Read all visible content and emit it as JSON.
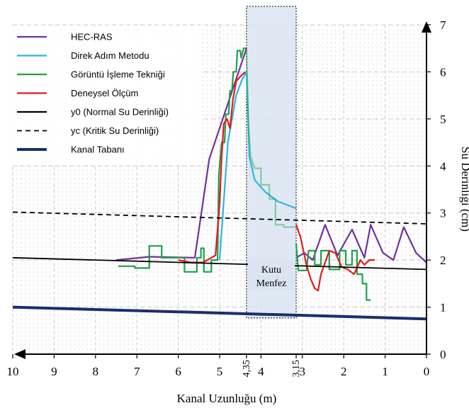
{
  "chart_data": {
    "type": "line",
    "xlabel": "Kanal Uzunluğu (m)",
    "ylabel": "Su Derinliği (cm)",
    "xlim": [
      10,
      0
    ],
    "ylim": [
      0,
      7
    ],
    "x_ticks": [
      "10",
      "9",
      "8",
      "7",
      "6",
      "5",
      "4,35",
      "4",
      "3,15",
      "3",
      "2",
      "1",
      "0"
    ],
    "x_tick_values": [
      10,
      9,
      8,
      7,
      6,
      5,
      4.35,
      4,
      3.15,
      3,
      2,
      1,
      0
    ],
    "y_ticks": [
      "0",
      "1",
      "2",
      "3",
      "4",
      "5",
      "6",
      "7"
    ],
    "y_tick_values": [
      0,
      1,
      2,
      3,
      4,
      5,
      6,
      7
    ],
    "grid": true,
    "legend_position": "top-left",
    "annotation": {
      "label_line1": "Kutu",
      "label_line2": "Menfez",
      "x_from": 4.35,
      "x_to": 3.15,
      "fill": "#dbe5f1"
    },
    "series": [
      {
        "name": "HEC-RAS",
        "color": "#7030a0",
        "style": "solid",
        "points": [
          [
            7.5,
            2.0
          ],
          [
            6.7,
            2.07
          ],
          [
            5.6,
            2.05
          ],
          [
            5.25,
            4.15
          ],
          [
            4.35,
            6.5
          ]
        ],
        "points2": [
          [
            3.15,
            2.05
          ],
          [
            2.95,
            2.15
          ],
          [
            2.75,
            2.0
          ],
          [
            2.45,
            2.75
          ],
          [
            2.15,
            2.1
          ],
          [
            1.8,
            2.65
          ],
          [
            1.5,
            2.05
          ],
          [
            1.35,
            2.75
          ],
          [
            1.05,
            2.15
          ],
          [
            0.8,
            2.0
          ],
          [
            0.55,
            2.7
          ],
          [
            0.25,
            2.15
          ],
          [
            0.0,
            1.95
          ]
        ]
      },
      {
        "name": "Direk Adım Metodu",
        "color": "#2eb3e6",
        "style": "solid",
        "points": [
          [
            5.0,
            2.0
          ],
          [
            4.8,
            4.5
          ],
          [
            4.6,
            5.5
          ],
          [
            4.45,
            5.85
          ],
          [
            4.35,
            6.0
          ]
        ],
        "points2": [
          [
            4.35,
            6.0
          ],
          [
            4.28,
            4.2
          ],
          [
            4.15,
            3.7
          ],
          [
            3.9,
            3.45
          ],
          [
            3.6,
            3.25
          ],
          [
            3.15,
            3.1
          ]
        ]
      },
      {
        "name": "Görüntü İşleme Tekniği",
        "color": "#1fa04a",
        "style": "solid",
        "points": [
          [
            7.45,
            1.87
          ],
          [
            7.05,
            1.87
          ],
          [
            7.05,
            1.83
          ],
          [
            6.7,
            1.83
          ],
          [
            6.7,
            2.3
          ],
          [
            6.4,
            2.3
          ],
          [
            6.4,
            2.05
          ],
          [
            5.85,
            2.05
          ],
          [
            5.85,
            1.75
          ],
          [
            5.55,
            1.75
          ],
          [
            5.55,
            2.05
          ],
          [
            5.45,
            2.05
          ],
          [
            5.45,
            2.25
          ],
          [
            5.38,
            2.25
          ],
          [
            5.38,
            1.75
          ],
          [
            5.2,
            1.75
          ],
          [
            5.2,
            2.0
          ],
          [
            5.05,
            2.0
          ],
          [
            5.02,
            3.8
          ],
          [
            4.95,
            4.5
          ],
          [
            4.88,
            4.5
          ],
          [
            4.85,
            5.1
          ],
          [
            4.78,
            5.1
          ],
          [
            4.75,
            5.6
          ],
          [
            4.7,
            5.6
          ],
          [
            4.67,
            6.0
          ],
          [
            4.6,
            6.0
          ],
          [
            4.57,
            6.45
          ],
          [
            4.5,
            6.45
          ],
          [
            4.48,
            6.3
          ],
          [
            4.42,
            6.5
          ],
          [
            4.36,
            6.5
          ]
        ],
        "points2": [
          [
            3.15,
            2.35
          ],
          [
            3.1,
            1.78
          ],
          [
            2.9,
            1.78
          ],
          [
            2.85,
            2.2
          ],
          [
            2.7,
            2.2
          ],
          [
            2.7,
            1.9
          ],
          [
            2.55,
            1.9
          ],
          [
            2.55,
            2.2
          ],
          [
            2.35,
            2.2
          ],
          [
            2.35,
            1.8
          ],
          [
            2.1,
            1.8
          ],
          [
            2.1,
            2.2
          ],
          [
            1.95,
            2.2
          ],
          [
            1.95,
            1.9
          ],
          [
            1.8,
            1.9
          ],
          [
            1.8,
            2.2
          ],
          [
            1.68,
            2.2
          ],
          [
            1.68,
            1.7
          ],
          [
            1.55,
            1.7
          ],
          [
            1.55,
            1.5
          ],
          [
            1.45,
            1.5
          ],
          [
            1.45,
            1.15
          ],
          [
            1.35,
            1.15
          ]
        ],
        "points_light": [
          [
            4.35,
            6.45
          ],
          [
            4.3,
            4.8
          ],
          [
            4.25,
            4.2
          ],
          [
            4.15,
            3.95
          ],
          [
            4.0,
            3.95
          ],
          [
            4.0,
            3.6
          ],
          [
            3.8,
            3.6
          ],
          [
            3.8,
            3.3
          ],
          [
            3.65,
            3.3
          ],
          [
            3.65,
            2.75
          ],
          [
            3.45,
            2.75
          ],
          [
            3.45,
            2.7
          ],
          [
            3.15,
            2.7
          ]
        ]
      },
      {
        "name": "Deneysel Ölçüm",
        "color": "#e41a1c",
        "style": "solid",
        "points": [
          [
            6.0,
            2.0
          ],
          [
            5.7,
            1.95
          ],
          [
            5.4,
            1.95
          ],
          [
            5.2,
            2.05
          ],
          [
            5.1,
            2.1
          ],
          [
            5.0,
            3.2
          ],
          [
            4.95,
            4.2
          ],
          [
            4.9,
            4.9
          ],
          [
            4.82,
            5.0
          ],
          [
            4.75,
            4.8
          ],
          [
            4.68,
            5.4
          ],
          [
            4.6,
            5.8
          ],
          [
            4.5,
            5.9
          ],
          [
            4.38,
            6.0
          ]
        ],
        "points2": [
          [
            3.15,
            2.75
          ],
          [
            3.05,
            2.5
          ],
          [
            2.9,
            1.9
          ],
          [
            2.8,
            1.6
          ],
          [
            2.7,
            1.4
          ],
          [
            2.62,
            1.35
          ],
          [
            2.55,
            1.7
          ],
          [
            2.45,
            1.95
          ],
          [
            2.35,
            2.2
          ],
          [
            2.2,
            2.15
          ],
          [
            2.05,
            1.85
          ],
          [
            1.9,
            1.8
          ],
          [
            1.75,
            1.7
          ],
          [
            1.6,
            2.0
          ],
          [
            1.5,
            1.9
          ],
          [
            1.38,
            2.0
          ],
          [
            1.25,
            2.0
          ]
        ]
      },
      {
        "name": "y0 (Normal Su Derinliği)",
        "color": "#000000",
        "style": "solid",
        "points": [
          [
            10,
            2.05
          ],
          [
            0,
            1.8
          ]
        ]
      },
      {
        "name": "yc (Kritik Su Derinliği)",
        "color": "#000000",
        "style": "dashed",
        "points": [
          [
            10,
            3.02
          ],
          [
            0,
            2.77
          ]
        ]
      },
      {
        "name": "Kanal Tabanı",
        "color": "#1a2e6e",
        "style": "thick",
        "points": [
          [
            10,
            1.0
          ],
          [
            0,
            0.75
          ]
        ]
      }
    ]
  }
}
